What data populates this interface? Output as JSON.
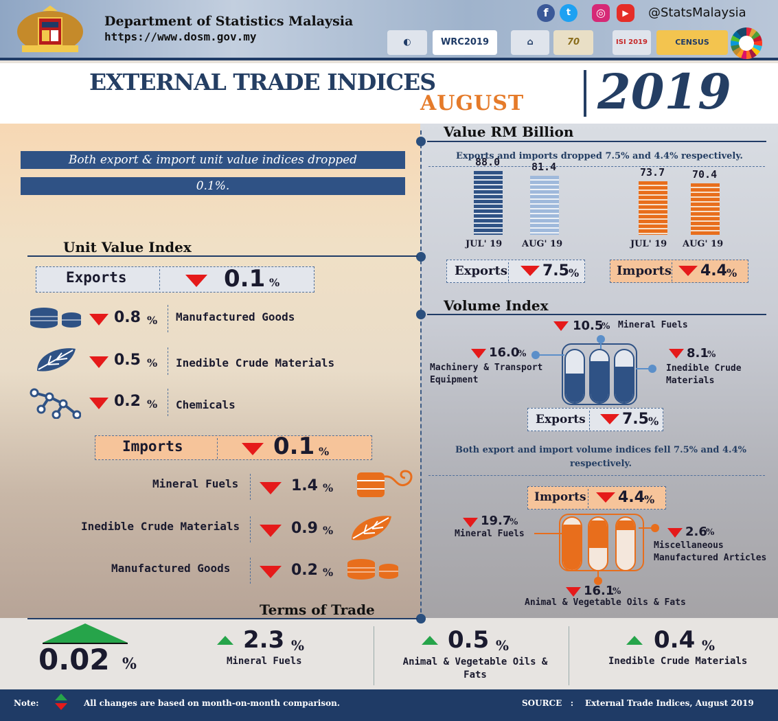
{
  "header": {
    "dept_name": "Department of Statistics Malaysia",
    "url": "https://www.dosm.gov.my",
    "social_handle": "@StatsMalaysia",
    "logos": [
      "WRC2019",
      "70",
      "ISI 2019",
      "CENSUS",
      "SDG"
    ]
  },
  "title": {
    "main": "EXTERNAL TRADE INDICES",
    "month": "AUGUST",
    "year": "2019"
  },
  "unit_value": {
    "banner_line1": "Both export & import unit value indices dropped",
    "banner_line2": "0.1%.",
    "section_title": "Unit Value Index",
    "exports": {
      "label": "Exports",
      "value": "0.1",
      "items": [
        {
          "value": "0.8",
          "label": "Manufactured Goods"
        },
        {
          "value": "0.5",
          "label": "Inedible Crude Materials"
        },
        {
          "value": "0.2",
          "label": "Chemicals"
        }
      ]
    },
    "imports": {
      "label": "Imports",
      "value": "0.1",
      "items": [
        {
          "value": "1.4",
          "label": "Mineral Fuels"
        },
        {
          "value": "0.9",
          "label": "Inedible Crude Materials"
        },
        {
          "value": "0.2",
          "label": "Manufactured Goods"
        }
      ]
    }
  },
  "value": {
    "section_title": "Value RM Billion",
    "caption": "Exports and imports dropped 7.5% and 4.4% respectively.",
    "exports_label": "Exports",
    "exports_change": "7.5",
    "imports_label": "Imports",
    "imports_change": "4.4",
    "period_labels": [
      "JUL' 19",
      "AUG' 19",
      "JUL' 19",
      "AUG' 19"
    ],
    "value_labels": [
      "88.0",
      "81.4",
      "73.7",
      "70.4"
    ]
  },
  "chart_data": {
    "type": "bar",
    "categories": [
      "JUL' 19",
      "AUG' 19"
    ],
    "series": [
      {
        "name": "Exports",
        "values": [
          88.0,
          81.4
        ]
      },
      {
        "name": "Imports",
        "values": [
          73.7,
          70.4
        ]
      }
    ],
    "title": "Value RM Billion",
    "xlabel": "",
    "ylabel": ""
  },
  "volume": {
    "section_title": "Volume Index",
    "exports": {
      "label": "Exports",
      "value": "7.5",
      "items": [
        {
          "value": "10.5",
          "label": "Mineral Fuels"
        },
        {
          "value": "16.0",
          "label": "Machinery & Transport Equipment"
        },
        {
          "value": "8.1",
          "label": "Inedible Crude Materials"
        }
      ]
    },
    "caption": "Both export and import volume indices fell 7.5% and 4.4% respectively.",
    "imports": {
      "label": "Imports",
      "value": "4.4",
      "items": [
        {
          "value": "19.7",
          "label": "Mineral Fuels"
        },
        {
          "value": "2.6",
          "label": "Miscellaneous Manufactured Articles"
        },
        {
          "value": "16.1",
          "label": "Animal & Vegetable Oils & Fats"
        }
      ]
    }
  },
  "terms": {
    "section_title": "Terms of Trade",
    "headline": "0.02",
    "items": [
      {
        "value": "2.3",
        "label": "Mineral Fuels"
      },
      {
        "value": "0.5",
        "label": "Animal & Vegetable Oils & Fats"
      },
      {
        "value": "0.4",
        "label": "Inedible Crude Materials"
      }
    ]
  },
  "footer": {
    "note_label": "Note:",
    "note_text": "All changes are based on month-on-month comparison.",
    "source_label": "SOURCE   :",
    "source_text": "External Trade Indices, August 2019"
  },
  "pct_sign": "%",
  "colors": {
    "navy": "#243e63",
    "orange": "#e57b2a",
    "red_down": "#e51a1a",
    "green_up": "#26a44a"
  }
}
